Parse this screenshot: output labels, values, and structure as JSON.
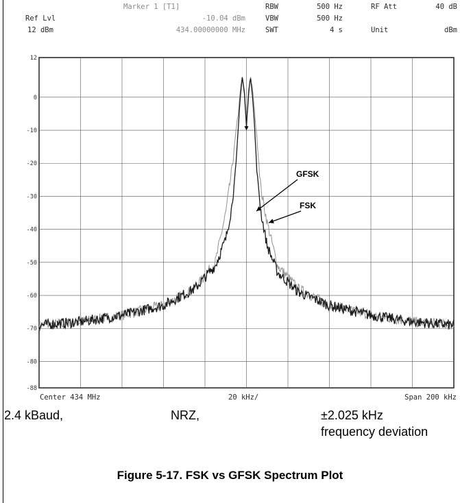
{
  "header": {
    "marker_label": "Marker 1 [T1]",
    "marker_level": "-10.04 dBm",
    "marker_freq": "434.00000000 MHz",
    "ref_lvl_label": "Ref Lvl",
    "ref_lvl_value": "12 dBm",
    "rbw_label": "RBW",
    "rbw_value": "500 Hz",
    "vbw_label": "VBW",
    "vbw_value": "500 Hz",
    "swt_label": "SWT",
    "swt_value": "4 s",
    "rfatt_label": "RF Att",
    "rfatt_value": "40 dB",
    "unit_label": "Unit",
    "unit_value": "dBm"
  },
  "footer": {
    "center": "Center 434 MHz",
    "division": "20 kHz/",
    "span": "Span 200 kHz"
  },
  "captions": {
    "baud": "2.4 kBaud,",
    "coding": "NRZ,",
    "deviation_line1": "±2.025 kHz",
    "deviation_line2": "frequency deviation"
  },
  "figure_title": "Figure 5-17. FSK vs GFSK Spectrum Plot",
  "chart_data": {
    "type": "line",
    "title": "",
    "xlabel": "",
    "ylabel": "",
    "x_unit": "kHz offset from 434 MHz",
    "xlim": [
      -100,
      100
    ],
    "ylim": [
      -88,
      12
    ],
    "y_ticks": [
      12,
      0,
      -10,
      -20,
      -30,
      -40,
      -50,
      -60,
      -70,
      -80,
      -88
    ],
    "x_gridlines": [
      -100,
      -80,
      -60,
      -40,
      -20,
      0,
      20,
      40,
      60,
      80,
      100
    ],
    "grid": true,
    "colors": {
      "FSK": "#9a9a9a",
      "GFSK": "#1a1a1a"
    },
    "series": [
      {
        "name": "FSK",
        "x": [
          -100,
          -80,
          -60,
          -40,
          -25,
          -15,
          -10,
          -7,
          -5,
          -4,
          -3,
          -2,
          -1,
          0,
          1,
          2,
          3,
          4,
          5,
          7,
          10,
          15,
          25,
          40,
          60,
          80,
          100
        ],
        "values": [
          -69,
          -68,
          -66,
          -63,
          -58,
          -50,
          -35,
          -22,
          -10,
          -5,
          2,
          6,
          2,
          -9,
          2,
          6,
          2,
          -5,
          -12,
          -28,
          -38,
          -51,
          -58,
          -63,
          -66,
          -68,
          -69
        ]
      },
      {
        "name": "GFSK",
        "x": [
          -100,
          -80,
          -60,
          -40,
          -25,
          -15,
          -10,
          -7,
          -5,
          -4,
          -3,
          -2,
          -1,
          0,
          1,
          2,
          3,
          4,
          5,
          7,
          10,
          15,
          25,
          40,
          60,
          80,
          100
        ],
        "values": [
          -69,
          -68,
          -66,
          -63,
          -58,
          -51,
          -43,
          -33,
          -20,
          -10,
          0,
          6,
          1,
          -9,
          1,
          6,
          0,
          -10,
          -22,
          -35,
          -45,
          -53,
          -59,
          -63,
          -66,
          -68,
          -69
        ]
      }
    ],
    "annotations": [
      {
        "text": "GFSK",
        "series": "GFSK",
        "at_x": 6,
        "at_y": -35
      },
      {
        "text": "FSK",
        "series": "FSK",
        "at_x": 13,
        "at_y": -39
      }
    ],
    "marker": {
      "x": 0,
      "y": -10.04
    }
  }
}
